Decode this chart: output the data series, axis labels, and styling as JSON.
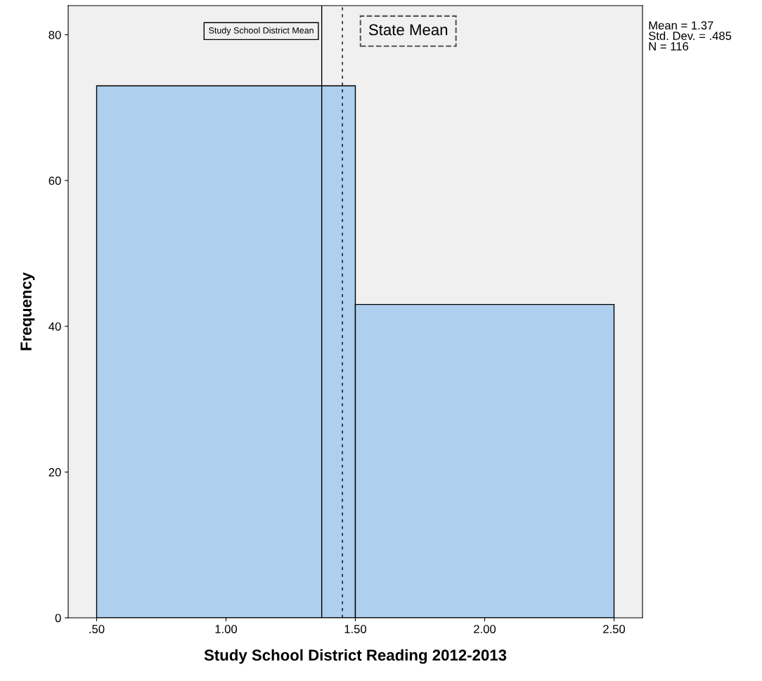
{
  "chart_data": {
    "type": "histogram",
    "xlabel": "Study School District Reading 2012-2013",
    "ylabel": "Frequency",
    "bins": [
      0.5,
      1.5,
      2.5
    ],
    "values": [
      73,
      43
    ],
    "color": "#aecfee",
    "xlim": [
      0.39,
      2.61
    ],
    "xticks": [
      {
        "value": 0.5,
        "label": ".50"
      },
      {
        "value": 1.0,
        "label": "1.00"
      },
      {
        "value": 1.5,
        "label": "1.50"
      },
      {
        "value": 2.0,
        "label": "2.00"
      },
      {
        "value": 2.5,
        "label": "2.50"
      }
    ],
    "ylim": [
      0,
      84
    ],
    "yticks": [
      0,
      20,
      40,
      60,
      80
    ],
    "grid": false,
    "ref_lines": [
      {
        "axis": "x",
        "value": 1.37,
        "label": "Study School District Mean",
        "line_style": "solid",
        "color": "#000000"
      },
      {
        "axis": "x",
        "value": 1.45,
        "label": "State Mean",
        "line_style": "dashed",
        "color": "#000000"
      }
    ],
    "annotations": [
      "Mean = 1.37",
      "Std. Dev. = .485",
      "N = 116"
    ]
  }
}
